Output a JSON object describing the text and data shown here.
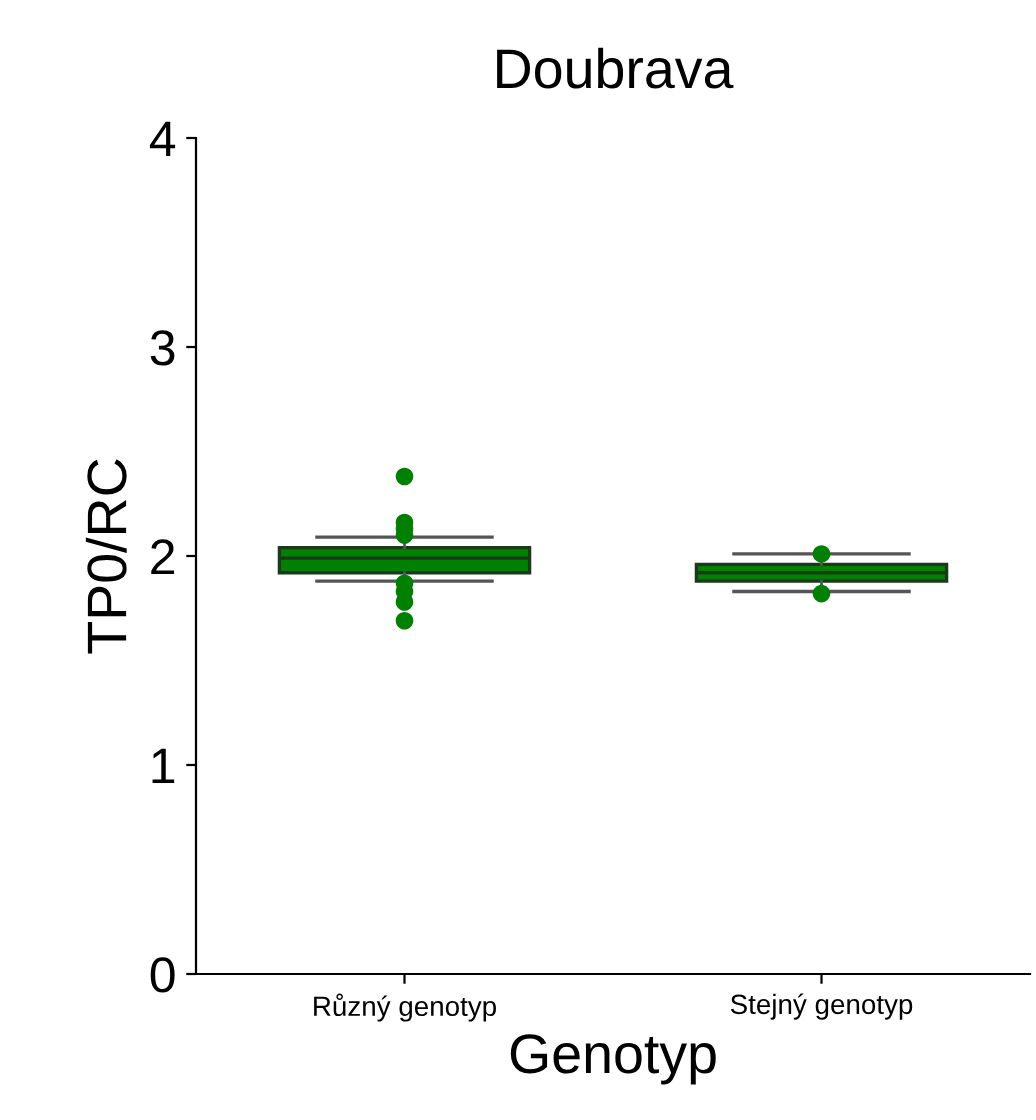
{
  "chart_data": {
    "type": "box",
    "title": "Doubrava",
    "xlabel": "Genotyp",
    "ylabel": "TP0/RC",
    "categories": [
      "Různý genotyp",
      "Stejný genotyp"
    ],
    "color": "#008000",
    "boxes": [
      {
        "low": 1.88,
        "q1": 1.92,
        "median": 1.99,
        "q3": 2.04,
        "high": 2.09,
        "outliers": [
          2.38,
          2.16,
          2.13,
          2.1,
          1.87,
          1.83,
          1.78,
          1.69
        ]
      },
      {
        "low": 1.83,
        "q1": 1.88,
        "median": 1.92,
        "q3": 1.96,
        "high": 2.01,
        "outliers": [
          2.01,
          1.82
        ]
      }
    ],
    "ylim": [
      0,
      4
    ],
    "yticks": [
      0,
      1,
      2,
      3,
      4
    ],
    "grid": false,
    "legend": false
  }
}
